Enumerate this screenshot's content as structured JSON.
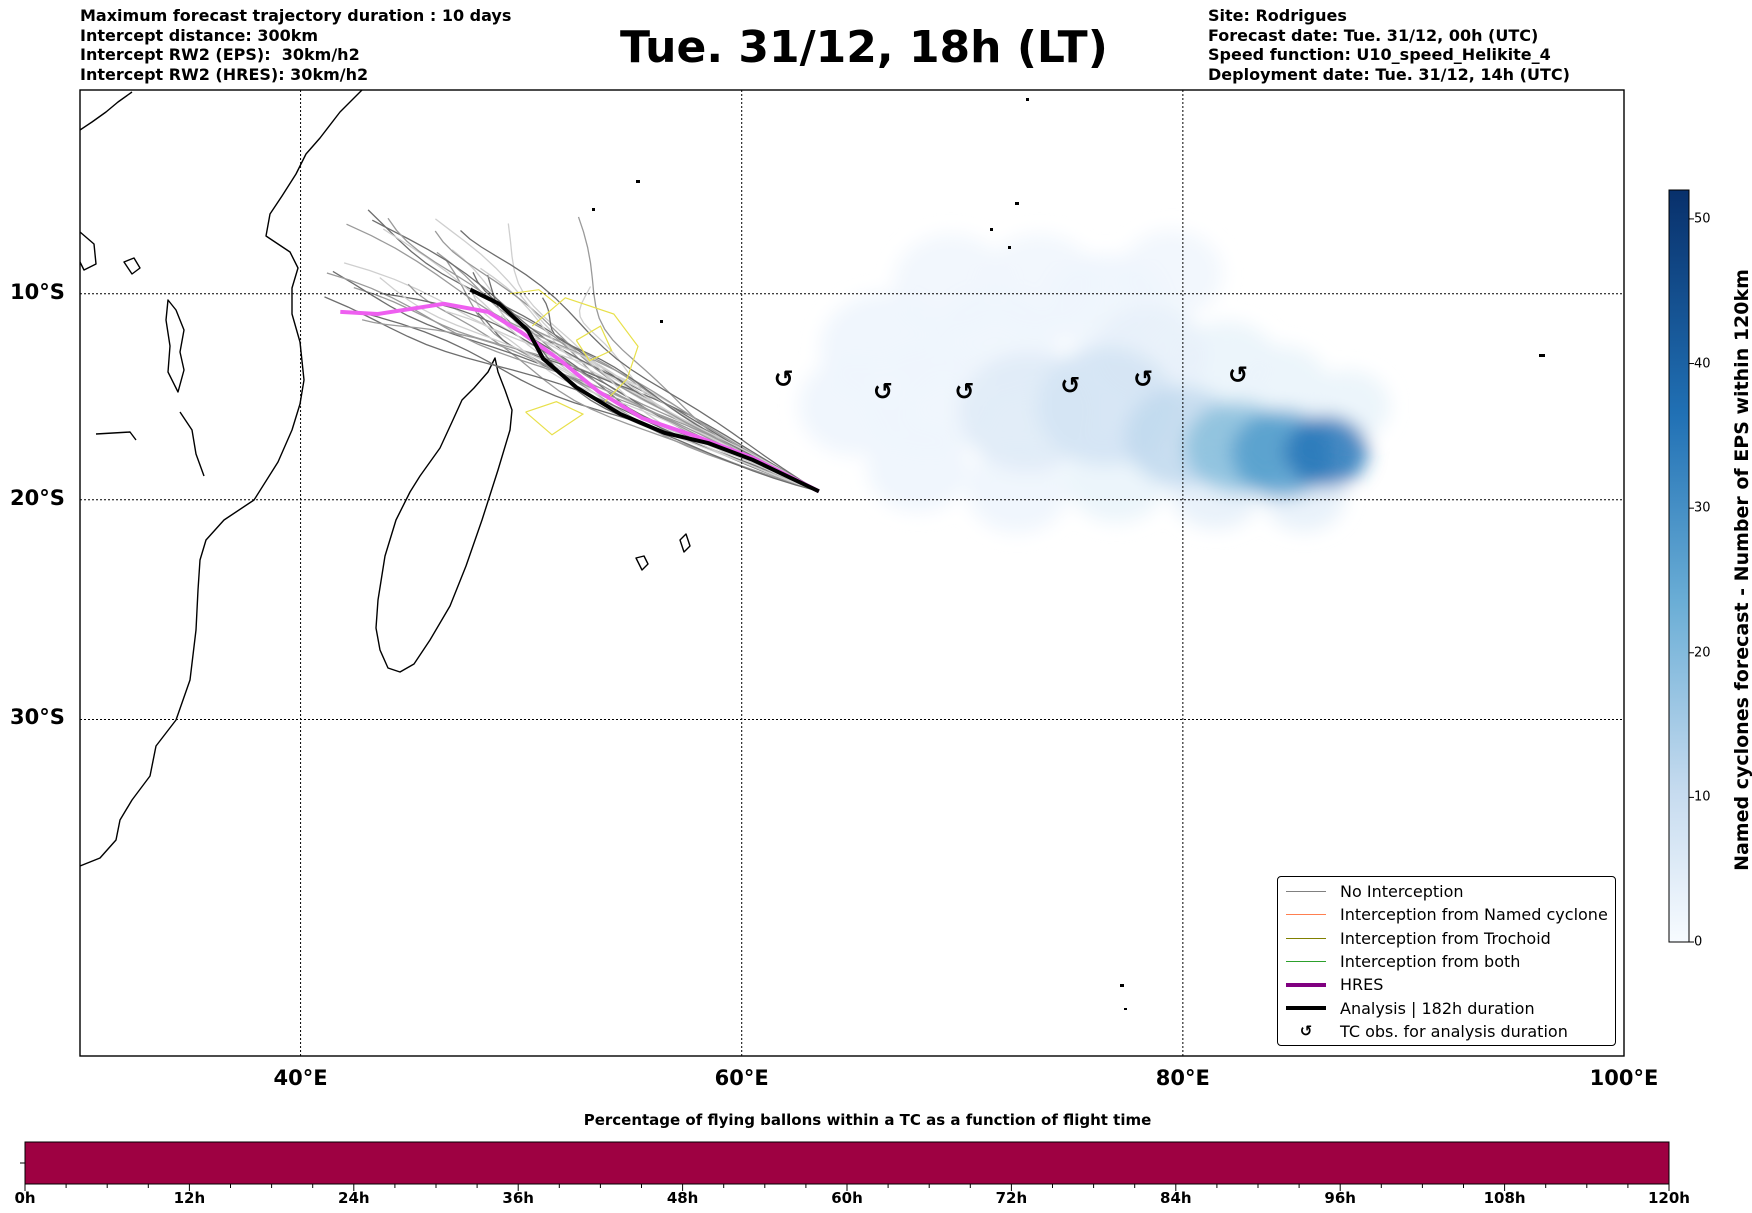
{
  "header_left": [
    "Maximum forecast trajectory duration : 10 days",
    "Intercept distance: 300km",
    "Intercept RW2 (EPS):  30km/h2",
    "Intercept RW2 (HRES): 30km/h2"
  ],
  "header_right": [
    "Site: Rodrigues",
    "Forecast date: Tue. 31/12, 00h (UTC)",
    "Speed function: U10_speed_Helikite_4",
    "Deployment date: Tue. 31/12, 14h (UTC)"
  ],
  "title": "Tue. 31/12, 18h (LT)",
  "map": {
    "lon_range": [
      30,
      100
    ],
    "lat_range": [
      -43.5,
      0.2
    ],
    "lat_ticks": [
      {
        "value": -10,
        "label": "10°S"
      },
      {
        "value": -20,
        "label": "20°S"
      },
      {
        "value": -30,
        "label": "30°S"
      }
    ],
    "lon_ticks": [
      {
        "value": 40,
        "label": "40°E"
      },
      {
        "value": 60,
        "label": "60°E"
      },
      {
        "value": 80,
        "label": "80°E"
      },
      {
        "value": 100,
        "label": "100°E"
      }
    ],
    "hres_track": [
      [
        41.8,
        -10.9
      ],
      [
        43.5,
        -11.0
      ],
      [
        46.5,
        -10.5
      ],
      [
        48.5,
        -10.9
      ],
      [
        50.0,
        -11.9
      ],
      [
        51.8,
        -13.3
      ],
      [
        53.5,
        -14.8
      ],
      [
        55.5,
        -16.1
      ],
      [
        58.0,
        -17.0
      ],
      [
        60.5,
        -18.0
      ],
      [
        63.5,
        -19.6
      ]
    ],
    "analysis_track": [
      [
        47.7,
        -9.8
      ],
      [
        49.0,
        -10.5
      ],
      [
        50.3,
        -11.8
      ],
      [
        51.0,
        -13.2
      ],
      [
        52.5,
        -14.6
      ],
      [
        54.5,
        -15.9
      ],
      [
        56.5,
        -16.8
      ],
      [
        58.5,
        -17.3
      ],
      [
        60.5,
        -18.1
      ],
      [
        63.5,
        -19.6
      ]
    ],
    "tc_obs": [
      [
        61.9,
        -14.2
      ],
      [
        66.4,
        -14.8
      ],
      [
        70.1,
        -14.8
      ],
      [
        74.9,
        -14.5
      ],
      [
        78.2,
        -14.2
      ],
      [
        82.5,
        -14.0
      ]
    ],
    "tc_symbol": "↺",
    "cyclone_blobs": [
      {
        "lon": 66.5,
        "lat": -12.7,
        "r": 2.8,
        "v": 2
      },
      {
        "lon": 65.2,
        "lat": -15.5,
        "r": 2.5,
        "v": 2
      },
      {
        "lon": 68.5,
        "lat": -15.2,
        "r": 2.8,
        "v": 2
      },
      {
        "lon": 69.5,
        "lat": -9.5,
        "r": 2.5,
        "v": 1.5
      },
      {
        "lon": 68.0,
        "lat": -18.5,
        "r": 2.2,
        "v": 2
      },
      {
        "lon": 71.5,
        "lat": -12.5,
        "r": 2.8,
        "v": 2
      },
      {
        "lon": 73.5,
        "lat": -9.5,
        "r": 2.5,
        "v": 1.5
      },
      {
        "lon": 73.0,
        "lat": -15.8,
        "r": 3.0,
        "v": 6
      },
      {
        "lon": 72.5,
        "lat": -19.5,
        "r": 2.2,
        "v": 2
      },
      {
        "lon": 76.5,
        "lat": -10.5,
        "r": 2.5,
        "v": 2
      },
      {
        "lon": 76.5,
        "lat": -15.5,
        "r": 3.0,
        "v": 9
      },
      {
        "lon": 77.0,
        "lat": -19.0,
        "r": 2.2,
        "v": 3
      },
      {
        "lon": 79.5,
        "lat": -9.0,
        "r": 2.2,
        "v": 1.5
      },
      {
        "lon": 78.5,
        "lat": -13.0,
        "r": 2.5,
        "v": 4
      },
      {
        "lon": 80.0,
        "lat": -17.0,
        "r": 2.5,
        "v": 14
      },
      {
        "lon": 82.0,
        "lat": -13.5,
        "r": 2.2,
        "v": 3
      },
      {
        "lon": 81.5,
        "lat": -19.5,
        "r": 2.0,
        "v": 4
      },
      {
        "lon": 82.5,
        "lat": -17.5,
        "r": 2.3,
        "v": 22
      },
      {
        "lon": 84.5,
        "lat": -17.8,
        "r": 2.2,
        "v": 30
      },
      {
        "lon": 86.5,
        "lat": -17.7,
        "r": 1.8,
        "v": 38
      },
      {
        "lon": 84.5,
        "lat": -14.5,
        "r": 2.0,
        "v": 3
      },
      {
        "lon": 87.5,
        "lat": -15.5,
        "r": 1.8,
        "v": 3
      },
      {
        "lon": 85.5,
        "lat": -19.8,
        "r": 1.8,
        "v": 4
      }
    ]
  },
  "legend": [
    {
      "label": "No Interception",
      "color": "#808080",
      "kind": "thin"
    },
    {
      "label": "Interception from Named cyclone",
      "color": "#ff7f50",
      "kind": "thin"
    },
    {
      "label": "Interception from Trochoid",
      "color": "#808000",
      "kind": "thin"
    },
    {
      "label": "Interception from both",
      "color": "#2ca02c",
      "kind": "thin"
    },
    {
      "label": "HRES",
      "color": "#800080",
      "kind": "thick"
    },
    {
      "label": "Analysis | 182h duration",
      "color": "#000000",
      "kind": "thick"
    },
    {
      "label": "TC obs. for analysis duration",
      "color": "#000000",
      "kind": "symbol"
    }
  ],
  "colorbar": {
    "title": "Named cyclones forecast - Number of EPS within 120km",
    "min": 0,
    "max": 52,
    "ticks": [
      0,
      10,
      20,
      30,
      40,
      50
    ],
    "color_low": "#f7fbff",
    "color_high": "#08306b"
  },
  "flight_bar": {
    "title": "Percentage of flying ballons within a TC as a function of flight time",
    "color": "#9e0142",
    "range_hours": [
      0,
      120
    ],
    "labels": [
      "0h",
      "12h",
      "24h",
      "36h",
      "48h",
      "60h",
      "72h",
      "84h",
      "96h",
      "108h",
      "120h"
    ]
  }
}
